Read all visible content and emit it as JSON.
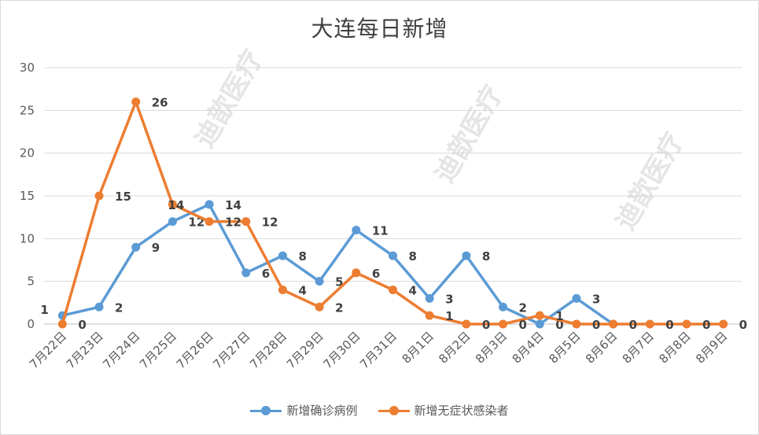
{
  "chart_data": {
    "type": "line",
    "title": "大连每日新增",
    "categories": [
      "7月22日",
      "7月23日",
      "7月24日",
      "7月25日",
      "7月26日",
      "7月27日",
      "7月28日",
      "7月29日",
      "7月30日",
      "7月31日",
      "8月1日",
      "8月2日",
      "8月3日",
      "8月4日",
      "8月5日",
      "8月6日",
      "8月7日",
      "8月8日",
      "8月9日"
    ],
    "ylim": [
      0,
      30
    ],
    "yticks": [
      0,
      5,
      10,
      15,
      20,
      25,
      30
    ],
    "grid": true,
    "legend_position": "bottom",
    "series": [
      {
        "name": "新增确诊病例",
        "color": "#5b9bd5",
        "values": [
          1,
          2,
          9,
          12,
          14,
          6,
          8,
          5,
          11,
          8,
          3,
          8,
          2,
          0,
          3,
          0,
          null,
          null,
          null
        ],
        "labels": [
          "1",
          "2",
          "9",
          "12",
          "14",
          "6",
          "8",
          "5",
          "11",
          "8",
          "3",
          "8",
          "2",
          "0",
          "3",
          "",
          "",
          "",
          ""
        ]
      },
      {
        "name": "新增无症状感染者",
        "color": "#ed7d31",
        "values": [
          0,
          15,
          26,
          14,
          12,
          12,
          4,
          2,
          6,
          4,
          1,
          0,
          0,
          1,
          0,
          0,
          0,
          0,
          0
        ],
        "labels": [
          "0",
          "15",
          "26",
          "14",
          "12",
          "12",
          "4",
          "2",
          "6",
          "4",
          "1",
          "0",
          "0",
          "1",
          "0",
          "0",
          "0",
          "0",
          "0"
        ]
      }
    ]
  },
  "watermark": "迪歆医疗"
}
